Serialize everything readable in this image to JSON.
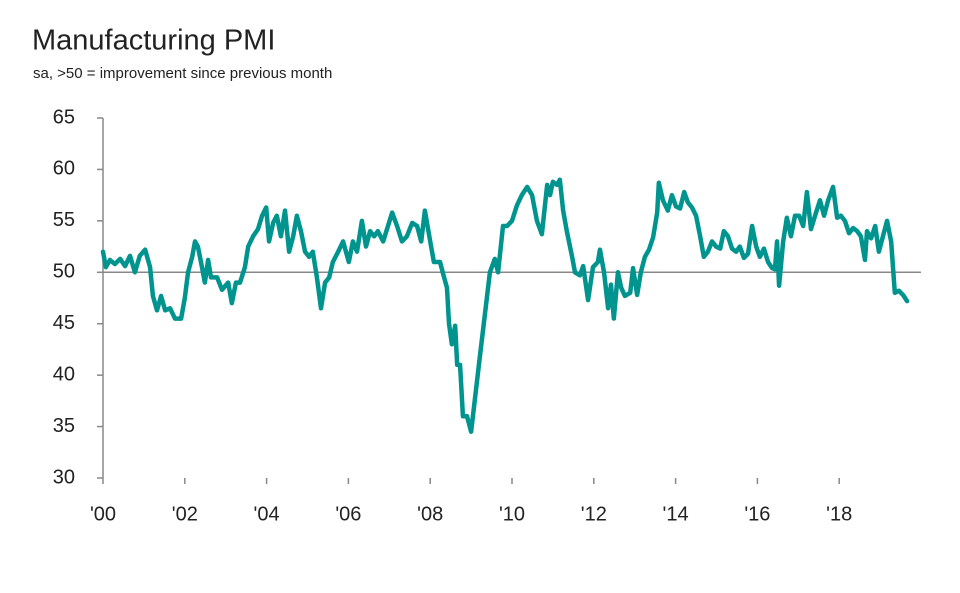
{
  "chart_data": {
    "type": "line",
    "title": "Manufacturing PMI",
    "subtitle": "sa, >50 = improvement since previous month",
    "color": "#00948f",
    "refline": 50,
    "xlim": [
      2000,
      2020
    ],
    "xticks": [
      {
        "value": 2000,
        "label": "'00"
      },
      {
        "value": 2002,
        "label": "'02"
      },
      {
        "value": 2004,
        "label": "'04"
      },
      {
        "value": 2006,
        "label": "'06"
      },
      {
        "value": 2008,
        "label": "'08"
      },
      {
        "value": 2010,
        "label": "'10"
      },
      {
        "value": 2012,
        "label": "'12"
      },
      {
        "value": 2014,
        "label": "'14"
      },
      {
        "value": 2016,
        "label": "'16"
      },
      {
        "value": 2018,
        "label": "'18"
      }
    ],
    "ylim": [
      30,
      65
    ],
    "yticks": [
      30,
      35,
      40,
      45,
      50,
      55,
      60,
      65
    ],
    "x": [
      2000.0,
      2000.07,
      2000.17,
      2000.29,
      2000.42,
      2000.54,
      2000.66,
      2000.78,
      2000.9,
      2001.03,
      2001.15,
      2001.22,
      2001.32,
      2001.42,
      2001.52,
      2001.64,
      2001.76,
      2001.91,
      2002.0,
      2002.08,
      2002.18,
      2002.25,
      2002.32,
      2002.42,
      2002.49,
      2002.57,
      2002.64,
      2002.79,
      2002.91,
      2003.06,
      2003.15,
      2003.25,
      2003.35,
      2003.47,
      2003.55,
      2003.67,
      2003.79,
      2003.89,
      2003.99,
      2004.06,
      2004.16,
      2004.25,
      2004.35,
      2004.45,
      2004.55,
      2004.65,
      2004.74,
      2004.84,
      2004.94,
      2005.04,
      2005.13,
      2005.23,
      2005.33,
      2005.43,
      2005.53,
      2005.62,
      2005.75,
      2005.87,
      2006.01,
      2006.11,
      2006.21,
      2006.33,
      2006.43,
      2006.53,
      2006.63,
      2006.72,
      2006.85,
      2007.07,
      2007.19,
      2007.31,
      2007.43,
      2007.56,
      2007.68,
      2007.78,
      2007.87,
      2008.0,
      2008.09,
      2008.24,
      2008.34,
      2008.41,
      2008.46,
      2008.53,
      2008.61,
      2008.66,
      2008.73,
      2008.8,
      2008.9,
      2009.0,
      2009.22,
      2009.34,
      2009.46,
      2009.58,
      2009.66,
      2009.78,
      2009.88,
      2010.0,
      2010.12,
      2010.24,
      2010.37,
      2010.49,
      2010.61,
      2010.73,
      2010.86,
      2010.93,
      2011.0,
      2011.1,
      2011.17,
      2011.25,
      2011.34,
      2011.47,
      2011.54,
      2011.66,
      2011.74,
      2011.86,
      2011.98,
      2012.1,
      2012.15,
      2012.25,
      2012.35,
      2012.42,
      2012.49,
      2012.59,
      2012.67,
      2012.76,
      2012.89,
      2012.96,
      2013.06,
      2013.15,
      2013.25,
      2013.35,
      2013.45,
      2013.55,
      2013.59,
      2013.69,
      2013.81,
      2013.91,
      2014.01,
      2014.11,
      2014.21,
      2014.3,
      2014.4,
      2014.5,
      2014.6,
      2014.69,
      2014.79,
      2014.89,
      2014.99,
      2015.09,
      2015.18,
      2015.28,
      2015.38,
      2015.48,
      2015.57,
      2015.67,
      2015.77,
      2015.87,
      2015.97,
      2016.06,
      2016.16,
      2016.26,
      2016.36,
      2016.43,
      2016.48,
      2016.53,
      2016.63,
      2016.72,
      2016.82,
      2016.92,
      2017.02,
      2017.12,
      2017.21,
      2017.31,
      2017.41,
      2017.53,
      2017.63,
      2017.73,
      2017.85,
      2017.95,
      2018.04,
      2018.14,
      2018.24,
      2018.34,
      2018.44,
      2018.53,
      2018.63,
      2018.68,
      2018.78,
      2018.88,
      2018.97,
      2019.07,
      2019.17,
      2019.27,
      2019.36,
      2019.46,
      2019.56,
      2019.66
    ],
    "values": [
      52,
      50.5,
      51.2,
      50.8,
      51.3,
      50.6,
      51.6,
      50,
      51.6,
      52.2,
      50.5,
      47.7,
      46.3,
      47.7,
      46.3,
      46.5,
      45.5,
      45.5,
      47.5,
      50,
      51.5,
      53,
      52.5,
      50.5,
      49,
      51.2,
      49.5,
      49.5,
      48.3,
      49,
      47,
      49,
      49,
      50.5,
      52.5,
      53.5,
      54.2,
      55.5,
      56.3,
      53,
      54.8,
      55.5,
      53.5,
      56,
      52,
      53.5,
      55.5,
      54,
      52,
      51.5,
      52,
      49.5,
      46.5,
      49,
      49.5,
      51,
      52,
      53,
      51,
      53,
      52,
      55,
      52.5,
      54,
      53.5,
      54,
      53,
      55.8,
      54.5,
      53,
      53.5,
      54.8,
      54.5,
      53,
      56,
      53,
      51,
      51,
      49.5,
      48.5,
      45,
      43,
      44.8,
      41,
      41,
      36,
      36,
      34.5,
      42,
      46,
      50,
      51.3,
      50,
      54.5,
      54.5,
      55,
      56.5,
      57.5,
      58.3,
      57.5,
      55,
      53.7,
      58.5,
      57.5,
      58.8,
      58.5,
      59,
      56,
      54,
      51.5,
      50,
      49.7,
      50.6,
      47.3,
      50.5,
      51,
      52.2,
      50,
      46.5,
      48.8,
      45.5,
      50,
      48.5,
      47.7,
      48,
      50.4,
      47.8,
      50,
      51.5,
      52.2,
      53.4,
      55.8,
      58.7,
      57,
      56,
      57.5,
      56.4,
      56.2,
      57.8,
      56.8,
      56.3,
      55.5,
      53.5,
      51.5,
      52,
      53,
      52.5,
      52.3,
      54,
      53.5,
      52.3,
      52,
      52.5,
      51.4,
      51.8,
      54.5,
      52.5,
      51.5,
      52.3,
      51,
      50.4,
      50.3,
      53,
      48.7,
      53,
      55.3,
      53.5,
      55.5,
      55.5,
      54.5,
      57.8,
      54.2,
      55.5,
      57,
      55.5,
      57,
      58.3,
      55.3,
      55.5,
      55,
      53.8,
      54.3,
      54,
      53.5,
      51.2,
      54,
      53.3,
      54.5,
      52,
      53.5,
      55,
      53,
      48,
      48.2,
      47.8,
      47.2
    ]
  }
}
